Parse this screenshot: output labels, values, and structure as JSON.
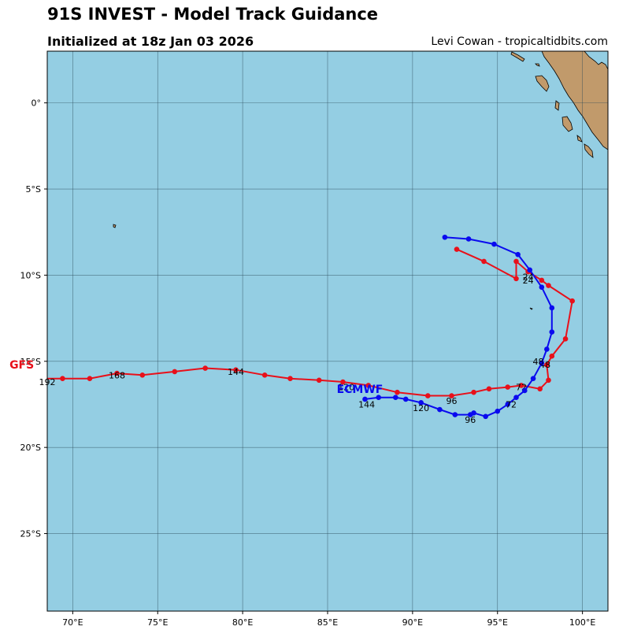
{
  "header": {
    "title": "91S INVEST - Model Track Guidance",
    "subtitle": "Initialized at 18z Jan 03 2026",
    "credit": "Levi Cowan - tropicaltidbits.com"
  },
  "map": {
    "lon_range": [
      68.5,
      101.5
    ],
    "lat_range": [
      -29.5,
      3.0
    ],
    "lon_ticks": [
      {
        "value": 70,
        "label": "70°E"
      },
      {
        "value": 75,
        "label": "75°E"
      },
      {
        "value": 80,
        "label": "80°E"
      },
      {
        "value": 85,
        "label": "85°E"
      },
      {
        "value": 90,
        "label": "90°E"
      },
      {
        "value": 95,
        "label": "95°E"
      },
      {
        "value": 100,
        "label": "100°E"
      }
    ],
    "lat_ticks": [
      {
        "value": 0,
        "label": "0°"
      },
      {
        "value": -5,
        "label": "5°S"
      },
      {
        "value": -10,
        "label": "10°S"
      },
      {
        "value": -15,
        "label": "15°S"
      },
      {
        "value": -20,
        "label": "20°S"
      },
      {
        "value": -25,
        "label": "25°S"
      }
    ],
    "colors": {
      "ocean": "#94cee3",
      "land": "#c19a6b",
      "grid": "#2b4a5a"
    }
  },
  "tracks": [
    {
      "name": "GFS",
      "label": "GFS",
      "color": "#e8101a",
      "points": [
        [
          92.6,
          -8.5
        ],
        [
          94.2,
          -9.2
        ],
        [
          96.1,
          -10.2
        ],
        [
          96.1,
          -9.2
        ],
        [
          96.8,
          -9.8
        ],
        [
          97.6,
          -10.3
        ],
        [
          98.0,
          -10.6
        ],
        [
          99.4,
          -11.5
        ],
        [
          99.0,
          -13.7
        ],
        [
          98.2,
          -14.7
        ],
        [
          97.9,
          -15.2
        ],
        [
          98.0,
          -16.1
        ],
        [
          97.5,
          -16.6
        ],
        [
          96.4,
          -16.4
        ],
        [
          95.6,
          -16.5
        ],
        [
          94.5,
          -16.6
        ],
        [
          93.6,
          -16.8
        ],
        [
          92.3,
          -17.0
        ],
        [
          90.9,
          -17.0
        ],
        [
          89.1,
          -16.8
        ],
        [
          87.4,
          -16.4
        ],
        [
          85.9,
          -16.2
        ],
        [
          84.5,
          -16.1
        ],
        [
          82.8,
          -16.0
        ],
        [
          81.3,
          -15.8
        ],
        [
          79.6,
          -15.5
        ],
        [
          77.8,
          -15.4
        ],
        [
          76.0,
          -15.6
        ],
        [
          74.1,
          -15.8
        ],
        [
          72.6,
          -15.7
        ],
        [
          71.0,
          -16.0
        ],
        [
          69.4,
          -16.0
        ],
        [
          67.9,
          -16.0
        ]
      ],
      "hour_labels": [
        {
          "text": "24",
          "lon": 96.8,
          "lat": -10.3
        },
        {
          "text": "48",
          "lon": 97.8,
          "lat": -15.2
        },
        {
          "text": "72",
          "lon": 96.4,
          "lat": -16.5
        },
        {
          "text": "96",
          "lon": 92.3,
          "lat": -17.3
        },
        {
          "text": "120",
          "lon": 86.1,
          "lat": -16.5
        },
        {
          "text": "144",
          "lon": 79.6,
          "lat": -15.6
        },
        {
          "text": "168",
          "lon": 72.6,
          "lat": -15.8
        },
        {
          "text": "192",
          "lon": 68.5,
          "lat": -16.2
        }
      ],
      "name_pos": {
        "lon": 67.0,
        "lat": -15.2
      }
    },
    {
      "name": "ECMWF",
      "label": "ECMWF",
      "color": "#0a0aef",
      "points": [
        [
          91.9,
          -7.8
        ],
        [
          93.3,
          -7.9
        ],
        [
          94.8,
          -8.2
        ],
        [
          96.2,
          -8.8
        ],
        [
          96.9,
          -9.7
        ],
        [
          97.6,
          -10.7
        ],
        [
          98.2,
          -11.9
        ],
        [
          98.2,
          -13.3
        ],
        [
          97.9,
          -14.3
        ],
        [
          97.6,
          -15.1
        ],
        [
          97.1,
          -16.0
        ],
        [
          96.6,
          -16.7
        ],
        [
          96.1,
          -17.1
        ],
        [
          95.6,
          -17.5
        ],
        [
          95.0,
          -17.9
        ],
        [
          94.3,
          -18.2
        ],
        [
          93.6,
          -18.0
        ],
        [
          93.4,
          -18.1
        ],
        [
          92.5,
          -18.1
        ],
        [
          91.6,
          -17.8
        ],
        [
          90.5,
          -17.4
        ],
        [
          89.6,
          -17.2
        ],
        [
          89.0,
          -17.1
        ],
        [
          88.0,
          -17.1
        ],
        [
          87.2,
          -17.2
        ]
      ],
      "hour_labels": [
        {
          "text": "24",
          "lon": 96.8,
          "lat": -10.1
        },
        {
          "text": "48",
          "lon": 97.4,
          "lat": -15.0
        },
        {
          "text": "72",
          "lon": 95.8,
          "lat": -17.5
        },
        {
          "text": "96",
          "lon": 93.4,
          "lat": -18.4
        },
        {
          "text": "120",
          "lon": 90.5,
          "lat": -17.7
        },
        {
          "text": "144",
          "lon": 87.3,
          "lat": -17.5
        }
      ],
      "name_pos": {
        "lon": 86.9,
        "lat": -16.6
      }
    }
  ]
}
